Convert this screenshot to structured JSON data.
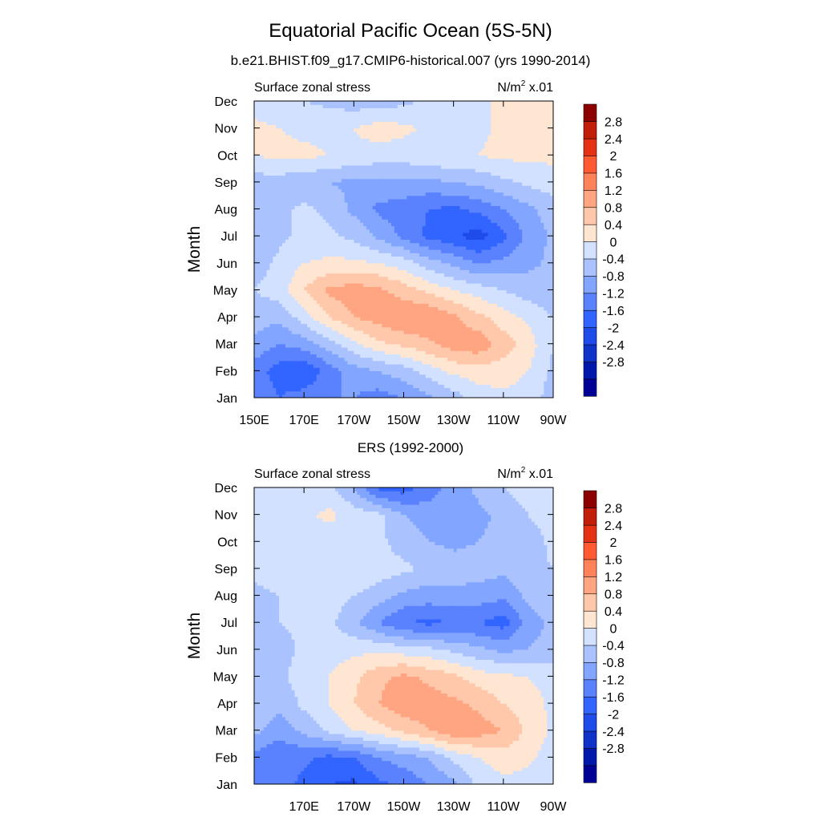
{
  "figure": {
    "title": "Equatorial Pacific Ocean (5S-5N)"
  },
  "colorbar": {
    "levels": [
      -2.8,
      -2.4,
      -2,
      -1.6,
      -1.2,
      -0.8,
      -0.4,
      0,
      0.4,
      0.8,
      1.2,
      1.6,
      2,
      2.4,
      2.8
    ],
    "colors": [
      "#000096",
      "#0019aa",
      "#0f32c8",
      "#1e4bea",
      "#3264ff",
      "#5a82ff",
      "#82a5ff",
      "#aac3ff",
      "#d2e1ff",
      "#ffe6d2",
      "#ffc8aa",
      "#ffa582",
      "#ff825a",
      "#ff5a32",
      "#e63214",
      "#c31e0a",
      "#8c0000"
    ],
    "labels": [
      "2.8",
      "2.4",
      "2",
      "1.6",
      "1.2",
      "0.8",
      "0.4",
      "0",
      "-0.4",
      "-0.8",
      "-1.2",
      "-1.6",
      "-2",
      "-2.4",
      "-2.8"
    ]
  },
  "chart_data": [
    {
      "type": "heatmap",
      "title": "b.e21.BHIST.f09_g17.CMIP6-historical.007 (yrs 1990-2014)",
      "left_string": "Surface zonal stress",
      "right_string_main": "N/m",
      "right_string_sup": "2",
      "right_string_tail": " x.01",
      "ylabel": "Month",
      "x_tick_labels": [
        "150E",
        "170E",
        "170W",
        "150W",
        "130W",
        "110W",
        "90W"
      ],
      "y_tick_labels": [
        "Jan",
        "Feb",
        "Mar",
        "Apr",
        "May",
        "Jun",
        "Jul",
        "Aug",
        "Sep",
        "Oct",
        "Nov",
        "Dec"
      ],
      "xlim": [
        150,
        270
      ],
      "ylim": [
        0,
        11
      ],
      "x": [
        150,
        160,
        170,
        180,
        190,
        200,
        210,
        220,
        230,
        240,
        250,
        260,
        270
      ],
      "y": [
        0,
        1,
        2,
        3,
        4,
        5,
        6,
        7,
        8,
        9,
        10,
        11
      ],
      "z": [
        [
          -0.8,
          -1.2,
          -1.0,
          -0.8,
          -0.8,
          -1.0,
          -0.8,
          -0.5,
          -0.2,
          0.2,
          0.3,
          0.2,
          -0.2
        ],
        [
          -1.0,
          -1.4,
          -1.6,
          -1.0,
          -0.6,
          -0.4,
          -0.2,
          0.2,
          0.5,
          0.6,
          0.6,
          0.4,
          -0.1
        ],
        [
          -0.5,
          -0.8,
          -0.6,
          -0.2,
          0.3,
          0.7,
          0.9,
          1.1,
          1.4,
          1.5,
          1.0,
          0.6,
          0.0
        ],
        [
          -0.2,
          -0.3,
          0.2,
          0.8,
          1.2,
          1.4,
          1.6,
          1.6,
          1.3,
          0.9,
          0.6,
          0.3,
          0.0
        ],
        [
          0.0,
          0.2,
          0.8,
          1.3,
          1.4,
          1.3,
          1.0,
          0.7,
          0.4,
          0.2,
          0.0,
          -0.2,
          -0.3
        ],
        [
          -0.2,
          0.1,
          0.4,
          0.5,
          0.5,
          0.4,
          0.2,
          -0.2,
          -0.5,
          -0.8,
          -0.7,
          -0.5,
          -0.3
        ],
        [
          -0.3,
          -0.1,
          0.1,
          0.1,
          -0.1,
          -0.5,
          -0.9,
          -1.3,
          -1.5,
          -1.8,
          -1.3,
          -0.7,
          -0.3
        ],
        [
          -0.2,
          -0.1,
          0.1,
          -0.1,
          -0.5,
          -0.9,
          -1.0,
          -1.2,
          -1.3,
          -1.1,
          -0.8,
          -0.5,
          -0.2
        ],
        [
          -0.2,
          -0.2,
          -0.3,
          -0.4,
          -0.5,
          -0.5,
          -0.5,
          -0.5,
          -0.4,
          -0.3,
          -0.1,
          0.1,
          0.2
        ],
        [
          0.4,
          0.5,
          0.5,
          0.4,
          0.3,
          0.2,
          0.2,
          0.3,
          0.4,
          0.4,
          0.5,
          0.5,
          0.5
        ],
        [
          0.5,
          0.4,
          0.3,
          0.3,
          0.4,
          0.6,
          0.5,
          0.3,
          0.1,
          0.3,
          0.5,
          0.7,
          0.6
        ],
        [
          0.2,
          0.1,
          0.0,
          -0.1,
          -0.2,
          -0.2,
          -0.1,
          0.1,
          0.2,
          0.3,
          0.5,
          0.6,
          0.5
        ]
      ]
    },
    {
      "type": "heatmap",
      "title": "ERS (1992-2000)",
      "left_string": "Surface zonal stress",
      "right_string_main": "N/m",
      "right_string_sup": "2",
      "right_string_tail": " x.01",
      "ylabel": "Month",
      "x_tick_labels": [
        "170E",
        "170W",
        "150W",
        "130W",
        "110W",
        "90W"
      ],
      "y_tick_labels": [
        "Jan",
        "Feb",
        "Mar",
        "Apr",
        "May",
        "Jun",
        "Jul",
        "Aug",
        "Sep",
        "Oct",
        "Nov",
        "Dec"
      ],
      "xlim": [
        150,
        270
      ],
      "ylim": [
        0,
        11
      ],
      "x": [
        150,
        160,
        170,
        180,
        190,
        200,
        210,
        220,
        230,
        240,
        250,
        260,
        270
      ],
      "y": [
        0,
        1,
        2,
        3,
        4,
        5,
        6,
        7,
        8,
        9,
        10,
        11
      ],
      "z": [
        [
          -0.8,
          -1.0,
          -1.3,
          -1.6,
          -1.7,
          -1.3,
          -1.1,
          -0.8,
          -0.5,
          0.1,
          0.3,
          0.2,
          0.0
        ],
        [
          -0.9,
          -1.2,
          -1.1,
          -1.3,
          -1.2,
          -0.8,
          -0.6,
          -0.4,
          0.1,
          0.4,
          0.6,
          0.5,
          0.2
        ],
        [
          -0.3,
          -0.6,
          -0.3,
          0.1,
          0.4,
          0.6,
          0.9,
          1.2,
          1.5,
          1.4,
          1.2,
          0.7,
          0.3
        ],
        [
          -0.1,
          -0.3,
          0.1,
          0.4,
          0.8,
          1.2,
          1.5,
          1.4,
          1.3,
          1.1,
          0.8,
          0.6,
          0.3
        ],
        [
          -0.2,
          -0.1,
          0.2,
          0.4,
          0.7,
          1.1,
          1.3,
          1.1,
          0.9,
          0.6,
          0.5,
          0.4,
          0.2
        ],
        [
          -0.3,
          -0.2,
          0.1,
          0.2,
          0.3,
          0.3,
          0.2,
          0.1,
          -0.1,
          -0.3,
          -0.5,
          -0.4,
          -0.2
        ],
        [
          -0.1,
          0.0,
          0.1,
          0.1,
          -0.3,
          -0.8,
          -1.2,
          -1.3,
          -1.2,
          -1.2,
          -1.4,
          -0.6,
          -0.3
        ],
        [
          -0.1,
          0.0,
          0.1,
          0.2,
          0.0,
          -0.2,
          -0.5,
          -0.6,
          -0.5,
          -0.6,
          -0.7,
          -0.3,
          -0.1
        ],
        [
          0.1,
          0.2,
          0.3,
          0.3,
          0.4,
          0.2,
          0.1,
          -0.1,
          -0.2,
          -0.2,
          -0.3,
          -0.1,
          0.0
        ],
        [
          0.2,
          0.3,
          0.3,
          0.2,
          0.3,
          0.1,
          -0.2,
          -0.4,
          -0.5,
          -0.4,
          -0.3,
          -0.2,
          0.1
        ],
        [
          0.3,
          0.4,
          0.3,
          0.5,
          0.2,
          0.1,
          -0.4,
          -0.6,
          -0.6,
          -0.5,
          -0.3,
          0.0,
          0.2
        ],
        [
          0.3,
          0.3,
          0.2,
          0.1,
          -0.4,
          -1.3,
          -1.4,
          -1.0,
          -0.6,
          -0.3,
          0.0,
          0.2,
          0.3
        ]
      ]
    }
  ]
}
